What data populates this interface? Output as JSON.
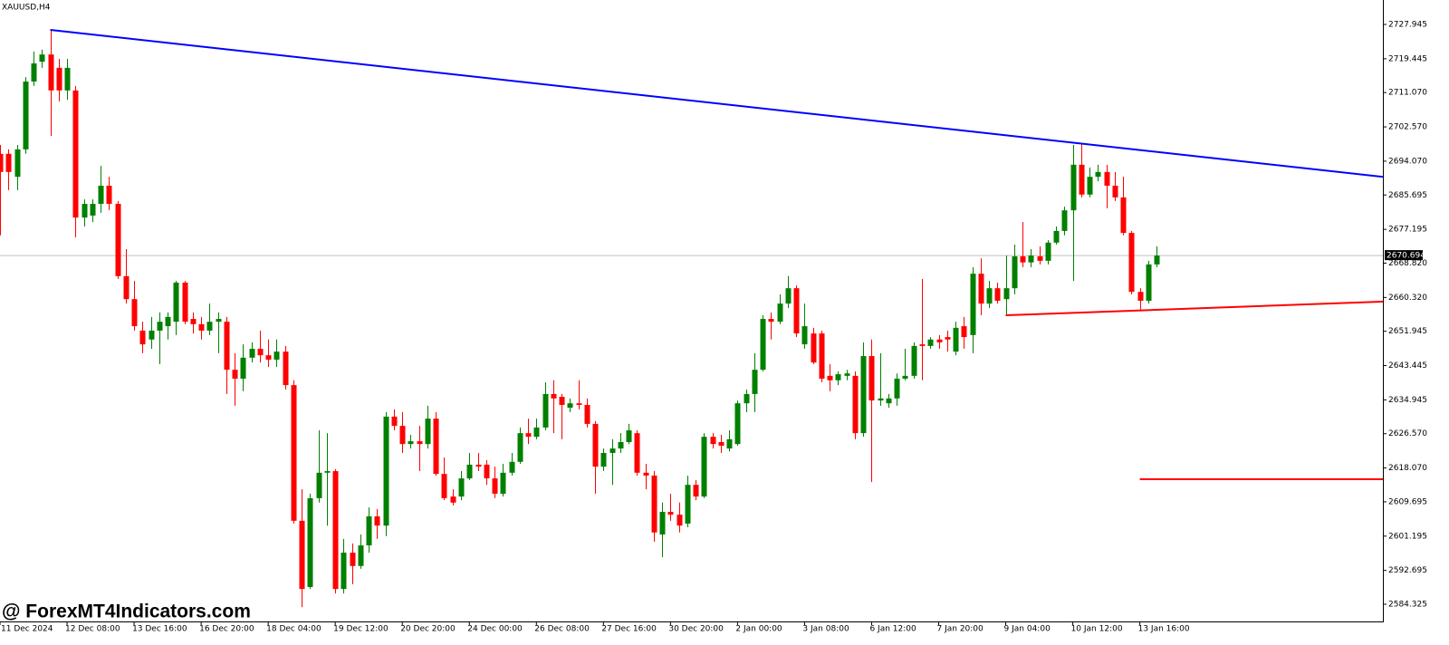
{
  "chart_data": {
    "type": "candlestick",
    "title": "XAUUSD,H4",
    "watermark": "@ ForexMT4Indicators.com",
    "up_color": "#008000",
    "down_color": "#ff0000",
    "current_price": 2670.694,
    "xlim": [
      0,
      165
    ],
    "ylim": [
      2580.06,
      2734.0
    ],
    "yticks": [
      2727.945,
      2719.445,
      {
        "value": 2711.07,
        "label": "2711.070"
      },
      {
        "value": 2702.57,
        "label": "2702.570"
      },
      {
        "value": 2694.07,
        "label": "2694.070"
      },
      2685.695,
      2677.195,
      {
        "value": 2668.82,
        "label": "2668.820"
      },
      {
        "value": 2660.32,
        "label": "2660.320"
      },
      2651.945,
      2643.445,
      2634.945,
      {
        "value": 2626.57,
        "label": "2626.570"
      },
      {
        "value": 2618.07,
        "label": "2618.070"
      },
      2609.695,
      2601.195,
      2592.695,
      2584.325
    ],
    "categories": [
      "11 Dec 2024",
      null,
      null,
      null,
      null,
      null,
      null,
      null,
      "12 Dec 08:00",
      null,
      null,
      null,
      null,
      null,
      null,
      null,
      "13 Dec 16:00",
      null,
      null,
      null,
      null,
      null,
      null,
      null,
      "16 Dec 20:00",
      null,
      null,
      null,
      null,
      null,
      null,
      null,
      "18 Dec 04:00",
      null,
      null,
      null,
      null,
      null,
      null,
      null,
      "19 Dec 12:00",
      null,
      null,
      null,
      null,
      null,
      null,
      null,
      "20 Dec 20:00",
      null,
      null,
      null,
      null,
      null,
      null,
      null,
      "24 Dec 00:00",
      null,
      null,
      null,
      null,
      null,
      null,
      null,
      "26 Dec 08:00",
      null,
      null,
      null,
      null,
      null,
      null,
      null,
      "27 Dec 16:00",
      null,
      null,
      null,
      null,
      null,
      null,
      null,
      "30 Dec 20:00",
      null,
      null,
      null,
      null,
      null,
      null,
      null,
      "2 Jan 00:00",
      null,
      null,
      null,
      null,
      null,
      null,
      null,
      "3 Jan 08:00",
      null,
      null,
      null,
      null,
      null,
      null,
      null,
      "6 Jan 12:00",
      null,
      null,
      null,
      null,
      null,
      null,
      null,
      "7 Jan 20:00",
      null,
      null,
      null,
      null,
      null,
      null,
      null,
      "9 Jan 04:00",
      null,
      null,
      null,
      null,
      null,
      null,
      null,
      "10 Jan 12:00",
      null,
      null,
      null,
      null,
      null,
      null,
      null,
      "13 Jan 16:00",
      null,
      null
    ],
    "open": [
      2695.9,
      2695.9,
      2690.2,
      2697.0,
      2713.8,
      2718.7,
      2720.5,
      2717.2,
      2711.6,
      2711.6,
      2680.1,
      2680.6,
      2683.5,
      2688.0,
      2683.5,
      2665.6,
      2659.9,
      2652.1,
      2649.9,
      2652.1,
      2653.2,
      2654.3,
      2664.0,
      2655.0,
      2653.7,
      2652.1,
      2654.3,
      2654.3,
      2642.4,
      2640.2,
      2645.4,
      2647.6,
      2646.0,
      2644.9,
      2646.9,
      2638.6,
      2605.0,
      2588.6,
      2610.6,
      2616.9,
      2617.3,
      2588.1,
      2597.1,
      2593.8,
      2598.9,
      2606.1,
      2603.8,
      2630.8,
      2628.5,
      2624.0,
      2624.7,
      2624.0,
      2630.3,
      2616.6,
      2611.0,
      2611.0,
      2615.5,
      2618.9,
      2618.9,
      2615.5,
      2611.7,
      2616.9,
      2619.6,
      2626.7,
      2625.8,
      2628.1,
      2636.4,
      2635.7,
      2633.0,
      2634.1,
      2633.7,
      2629.0,
      2618.4,
      2621.8,
      2622.9,
      2624.5,
      2626.7,
      2616.9,
      2616.2,
      2601.6,
      2607.2,
      2606.5,
      2604.3,
      2613.9,
      2611.0,
      2625.8,
      2624.5,
      2622.9,
      2624.0,
      2634.1,
      2636.4,
      2642.4,
      2655.0,
      2654.3,
      2658.8,
      2662.6,
      2648.7,
      2651.4,
      2651.4,
      2640.9,
      2639.8,
      2640.9,
      2640.9,
      2626.7,
      2645.8,
      2634.8,
      2634.1,
      2635.3,
      2640.2,
      2640.9,
      2648.7,
      2648.3,
      2649.9,
      2650.5,
      2646.9,
      2653.2,
      2651.0,
      2666.2,
      2658.8,
      2662.6,
      2659.9,
      2662.6,
      2670.5,
      2669.0,
      2670.5,
      2669.4,
      2673.9,
      2676.8,
      2681.9,
      2693.2,
      2685.8,
      2690.2,
      2691.4,
      2688.0,
      2685.1,
      2676.3,
      2661.7,
      2659.5,
      2668.5
    ],
    "high": [
      2698.1,
      2697.0,
      2698.1,
      2714.9,
      2721.2,
      2721.7,
      2726.6,
      2719.4,
      2719.4,
      2712.7,
      2684.6,
      2684.6,
      2692.9,
      2690.2,
      2684.2,
      2672.3,
      2664.4,
      2654.3,
      2655.5,
      2656.6,
      2656.6,
      2664.4,
      2664.4,
      2656.6,
      2655.5,
      2658.8,
      2656.6,
      2655.5,
      2646.5,
      2648.7,
      2649.2,
      2652.1,
      2649.9,
      2649.9,
      2648.3,
      2639.8,
      2612.8,
      2611.7,
      2627.4,
      2626.7,
      2617.8,
      2600.5,
      2599.4,
      2601.6,
      2608.3,
      2607.9,
      2631.9,
      2632.6,
      2631.9,
      2626.3,
      2628.5,
      2633.5,
      2631.9,
      2620.7,
      2612.8,
      2617.3,
      2621.8,
      2621.8,
      2620.0,
      2618.4,
      2619.1,
      2621.8,
      2628.1,
      2630.3,
      2630.3,
      2639.3,
      2639.8,
      2636.4,
      2635.3,
      2639.8,
      2635.3,
      2629.7,
      2622.9,
      2625.2,
      2626.7,
      2629.0,
      2627.4,
      2619.1,
      2617.3,
      2609.5,
      2611.7,
      2609.5,
      2616.2,
      2615.1,
      2626.7,
      2626.7,
      2626.3,
      2627.4,
      2634.8,
      2637.5,
      2646.5,
      2655.9,
      2656.6,
      2661.1,
      2665.6,
      2663.3,
      2658.8,
      2652.8,
      2652.1,
      2643.8,
      2642.0,
      2642.4,
      2642.0,
      2649.2,
      2649.9,
      2646.5,
      2636.4,
      2641.5,
      2647.6,
      2649.2,
      2664.9,
      2650.5,
      2651.0,
      2652.1,
      2654.3,
      2655.5,
      2667.8,
      2670.0,
      2664.4,
      2664.0,
      2670.7,
      2673.4,
      2679.0,
      2672.3,
      2673.0,
      2674.5,
      2677.9,
      2682.8,
      2698.1,
      2698.5,
      2692.5,
      2693.2,
      2693.2,
      2691.4,
      2690.2,
      2676.8,
      2662.6,
      2669.4,
      2673.0
    ],
    "low": [
      2675.7,
      2686.9,
      2686.9,
      2695.9,
      2712.7,
      2717.2,
      2700.3,
      2708.9,
      2709.3,
      2675.2,
      2677.9,
      2679.0,
      2681.3,
      2681.9,
      2664.9,
      2658.8,
      2652.1,
      2646.5,
      2647.6,
      2643.8,
      2649.9,
      2651.0,
      2653.7,
      2651.4,
      2649.9,
      2651.0,
      2646.5,
      2636.4,
      2633.5,
      2637.1,
      2644.2,
      2644.2,
      2643.1,
      2643.1,
      2637.5,
      2604.3,
      2583.6,
      2588.1,
      2609.5,
      2603.8,
      2587.0,
      2587.0,
      2589.3,
      2593.1,
      2597.1,
      2600.5,
      2601.2,
      2627.4,
      2621.8,
      2622.9,
      2617.3,
      2622.9,
      2616.2,
      2610.1,
      2608.8,
      2610.1,
      2615.1,
      2617.3,
      2613.9,
      2610.6,
      2611.0,
      2616.2,
      2619.1,
      2624.0,
      2625.2,
      2627.4,
      2626.7,
      2625.2,
      2631.9,
      2632.6,
      2628.1,
      2611.7,
      2617.3,
      2613.9,
      2621.8,
      2624.0,
      2616.2,
      2612.8,
      2599.8,
      2596.0,
      2605.0,
      2602.1,
      2603.4,
      2610.1,
      2610.6,
      2622.9,
      2621.8,
      2622.2,
      2623.6,
      2631.9,
      2631.9,
      2642.0,
      2649.9,
      2653.7,
      2657.7,
      2650.5,
      2647.6,
      2643.8,
      2639.3,
      2637.1,
      2638.6,
      2639.8,
      2625.2,
      2625.8,
      2614.6,
      2633.5,
      2633.0,
      2633.5,
      2639.8,
      2640.2,
      2639.8,
      2647.6,
      2647.6,
      2646.9,
      2646.0,
      2647.6,
      2646.5,
      2655.9,
      2657.7,
      2658.8,
      2655.9,
      2661.1,
      2667.8,
      2667.8,
      2668.5,
      2668.5,
      2673.4,
      2675.7,
      2664.4,
      2685.1,
      2685.1,
      2689.1,
      2682.4,
      2684.2,
      2675.7,
      2661.1,
      2657.3,
      2658.8,
      2667.8
    ],
    "close": [
      2691.4,
      2691.4,
      2697.0,
      2713.8,
      2718.3,
      2720.5,
      2711.6,
      2711.6,
      2717.2,
      2680.1,
      2683.5,
      2683.5,
      2688.0,
      2683.5,
      2665.6,
      2659.9,
      2653.2,
      2648.7,
      2652.1,
      2654.3,
      2655.5,
      2664.0,
      2654.3,
      2653.7,
      2652.1,
      2654.3,
      2655.0,
      2642.4,
      2640.2,
      2645.4,
      2647.6,
      2646.0,
      2644.9,
      2646.9,
      2638.6,
      2605.0,
      2588.1,
      2610.6,
      2616.9,
      2617.3,
      2588.1,
      2597.1,
      2593.8,
      2598.9,
      2606.1,
      2603.8,
      2630.8,
      2628.5,
      2624.0,
      2624.7,
      2624.0,
      2630.3,
      2616.6,
      2610.6,
      2609.5,
      2615.5,
      2618.9,
      2618.4,
      2615.5,
      2611.7,
      2616.9,
      2619.6,
      2626.7,
      2625.8,
      2628.1,
      2636.4,
      2635.3,
      2633.7,
      2634.1,
      2633.7,
      2629.0,
      2618.4,
      2621.8,
      2622.9,
      2624.5,
      2627.4,
      2616.9,
      2616.2,
      2602.1,
      2607.2,
      2606.5,
      2603.8,
      2613.9,
      2611.0,
      2625.8,
      2624.0,
      2623.6,
      2625.2,
      2634.1,
      2636.4,
      2642.4,
      2655.0,
      2654.3,
      2658.8,
      2662.6,
      2651.4,
      2653.2,
      2644.2,
      2640.2,
      2639.8,
      2641.3,
      2641.5,
      2626.7,
      2645.8,
      2634.8,
      2635.3,
      2635.3,
      2640.2,
      2640.9,
      2648.3,
      2648.3,
      2649.9,
      2649.2,
      2649.9,
      2652.8,
      2650.5,
      2666.2,
      2658.8,
      2662.6,
      2659.5,
      2662.6,
      2670.5,
      2669.0,
      2670.7,
      2669.4,
      2673.9,
      2676.8,
      2681.9,
      2693.2,
      2685.8,
      2690.2,
      2691.4,
      2688.0,
      2685.1,
      2676.3,
      2661.7,
      2659.5,
      2668.5,
      2670.7
    ],
    "trendlines": [
      {
        "color": "#0000ff",
        "points": [
          [
            6,
            2726.6
          ],
          [
            165,
            2690.2
          ]
        ]
      },
      {
        "color": "#ff0000",
        "points": [
          [
            120,
            2655.9
          ],
          [
            165,
            2659.3
          ]
        ]
      },
      {
        "color": "#ff0000",
        "points": [
          [
            136,
            2615.3
          ],
          [
            165,
            2615.3
          ]
        ]
      }
    ]
  }
}
